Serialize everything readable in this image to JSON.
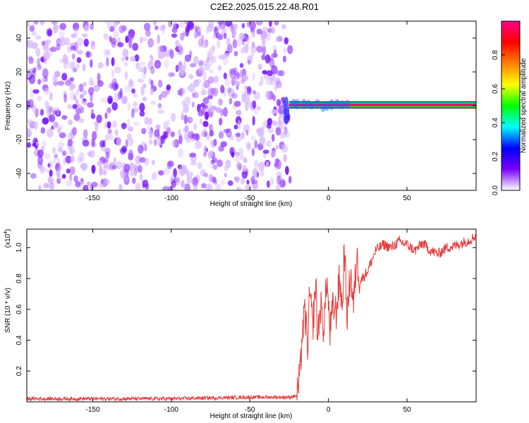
{
  "title": "C2E2.2025.015.22.48.R01",
  "chart_data": [
    {
      "type": "heatmap",
      "xlabel": "Height of straight line (km)",
      "ylabel": "Frequency (Hz)",
      "xlim": [
        -192,
        94
      ],
      "ylim": [
        -50,
        50
      ],
      "xticks": [
        -150,
        -100,
        -50,
        0,
        50
      ],
      "yticks": [
        -40,
        -20,
        0,
        20,
        40
      ],
      "noise_region": [
        -192,
        -27
      ],
      "signal_band": {
        "x_start": -25,
        "x_end": 94,
        "frequency": 0.5
      },
      "colorbar": {
        "label": "Normalized spectral amplitude",
        "range": [
          0,
          1
        ],
        "ticks": [
          0.0,
          0.2,
          0.4,
          0.6,
          0.8
        ],
        "colors": [
          "#ffffff",
          "#7a00ff",
          "#0000ff",
          "#00ffff",
          "#00ff00",
          "#ffff00",
          "#ff8000",
          "#ff0000",
          "#ff0088"
        ]
      }
    },
    {
      "type": "line",
      "xlabel": "Height of straight line (km)",
      "ylabel": "SNR (10 * v/v)",
      "scale_label": "(x10",
      "scale_exp": "4",
      "scale_close": ")",
      "xlim": [
        -192,
        94
      ],
      "ylim": [
        0,
        1.12
      ],
      "xticks": [
        -150,
        -100,
        -50,
        0,
        50
      ],
      "yticks": [
        0.2,
        0.4,
        0.6,
        0.8,
        1.0
      ],
      "series": [
        {
          "color": "#e83a3a",
          "x": [
            -192,
            -150,
            -100,
            -50,
            -25,
            -20,
            -18,
            -17,
            -15,
            -13,
            -12,
            -10,
            -8,
            -7,
            -5,
            -3,
            -1,
            1,
            3,
            5,
            7,
            9,
            10,
            12,
            14,
            16,
            18,
            20,
            25,
            30,
            35,
            40,
            45,
            50,
            55,
            60,
            65,
            70,
            75,
            80,
            85,
            90,
            94
          ],
          "y": [
            0.02,
            0.02,
            0.02,
            0.03,
            0.03,
            0.04,
            0.18,
            0.4,
            0.58,
            0.35,
            0.72,
            0.48,
            0.78,
            0.42,
            0.62,
            0.48,
            0.8,
            0.45,
            0.62,
            0.58,
            0.8,
            0.6,
            1.02,
            0.55,
            0.85,
            0.62,
            0.95,
            0.78,
            0.85,
            0.98,
            1.02,
            1.0,
            1.04,
            1.02,
            0.98,
            1.03,
            0.98,
            0.96,
            1.0,
            1.01,
            1.03,
            1.05,
            1.08
          ]
        }
      ]
    }
  ]
}
